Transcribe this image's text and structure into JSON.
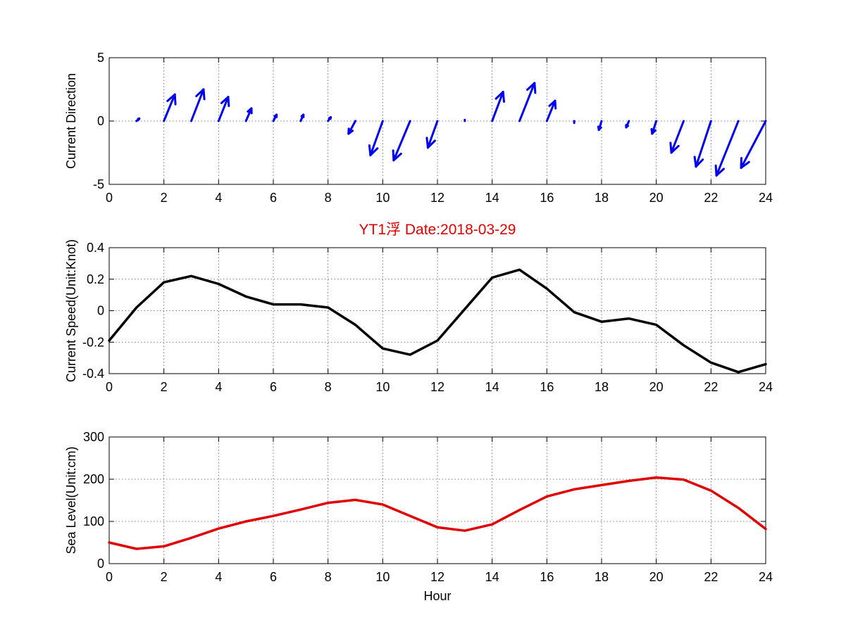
{
  "title": "YT1浮   Date:2018-03-29",
  "chart_data": [
    {
      "type": "quiver",
      "name": "direction",
      "ylabel": "Current Direction",
      "xlabel": "",
      "xlim": [
        0,
        24
      ],
      "ylim": [
        -5,
        5
      ],
      "xticks": [
        0,
        2,
        4,
        6,
        8,
        10,
        12,
        14,
        16,
        18,
        20,
        22,
        24
      ],
      "yticks": [
        -5,
        0,
        5
      ],
      "grid": true,
      "color": "#0000ee",
      "x": [
        0,
        1,
        2,
        3,
        4,
        5,
        6,
        7,
        8,
        9,
        10,
        11,
        12,
        13,
        14,
        15,
        16,
        17,
        18,
        19,
        20,
        21,
        22,
        23,
        24
      ],
      "u": [
        0.0,
        0.1,
        0.4,
        0.45,
        0.35,
        0.2,
        0.12,
        0.1,
        0.1,
        -0.25,
        -0.45,
        -0.6,
        -0.35,
        0.0,
        0.4,
        0.55,
        0.3,
        0.0,
        -0.1,
        -0.1,
        -0.15,
        -0.45,
        -0.55,
        -0.8,
        -0.9
      ],
      "v": [
        0.0,
        0.2,
        2.1,
        2.5,
        1.9,
        1.0,
        0.5,
        0.5,
        0.3,
        -1.0,
        -2.7,
        -3.1,
        -2.1,
        0.1,
        2.3,
        3.0,
        1.6,
        -0.15,
        -0.7,
        -0.5,
        -1.0,
        -2.5,
        -3.6,
        -4.3,
        -3.7
      ]
    },
    {
      "type": "line",
      "name": "speed",
      "ylabel": "Current Speed(Unit:Knot)",
      "xlabel": "",
      "xlim": [
        0,
        24
      ],
      "ylim": [
        -0.4,
        0.4
      ],
      "xticks": [
        0,
        2,
        4,
        6,
        8,
        10,
        12,
        14,
        16,
        18,
        20,
        22,
        24
      ],
      "yticks": [
        -0.4,
        -0.2,
        0,
        0.2,
        0.4
      ],
      "ytick_labels": [
        "-0.4",
        "-0.2",
        "0",
        "0.2",
        "0.4"
      ],
      "grid": true,
      "color": "#000000",
      "x": [
        0,
        1,
        2,
        3,
        4,
        5,
        6,
        7,
        8,
        9,
        10,
        11,
        12,
        13,
        14,
        15,
        16,
        17,
        18,
        19,
        20,
        21,
        22,
        23,
        24
      ],
      "y": [
        -0.19,
        0.02,
        0.18,
        0.22,
        0.17,
        0.09,
        0.04,
        0.04,
        0.02,
        -0.09,
        -0.24,
        -0.28,
        -0.19,
        0.01,
        0.21,
        0.26,
        0.14,
        -0.01,
        -0.07,
        -0.05,
        -0.09,
        -0.22,
        -0.33,
        -0.39,
        -0.34
      ]
    },
    {
      "type": "line",
      "name": "sealevel",
      "ylabel": "Sea Level(Unit:cm)",
      "xlabel": "Hour",
      "xlim": [
        0,
        24
      ],
      "ylim": [
        0,
        300
      ],
      "xticks": [
        0,
        2,
        4,
        6,
        8,
        10,
        12,
        14,
        16,
        18,
        20,
        22,
        24
      ],
      "yticks": [
        0,
        100,
        200,
        300
      ],
      "grid": true,
      "color": "#e00000",
      "x": [
        0,
        1,
        2,
        3,
        4,
        5,
        6,
        7,
        8,
        9,
        10,
        11,
        12,
        13,
        14,
        15,
        16,
        17,
        18,
        19,
        20,
        21,
        22,
        23,
        24
      ],
      "y": [
        50,
        35,
        41,
        61,
        83,
        100,
        113,
        128,
        144,
        151,
        140,
        113,
        86,
        78,
        93,
        127,
        159,
        176,
        186,
        196,
        204,
        199,
        173,
        132,
        82
      ]
    }
  ]
}
